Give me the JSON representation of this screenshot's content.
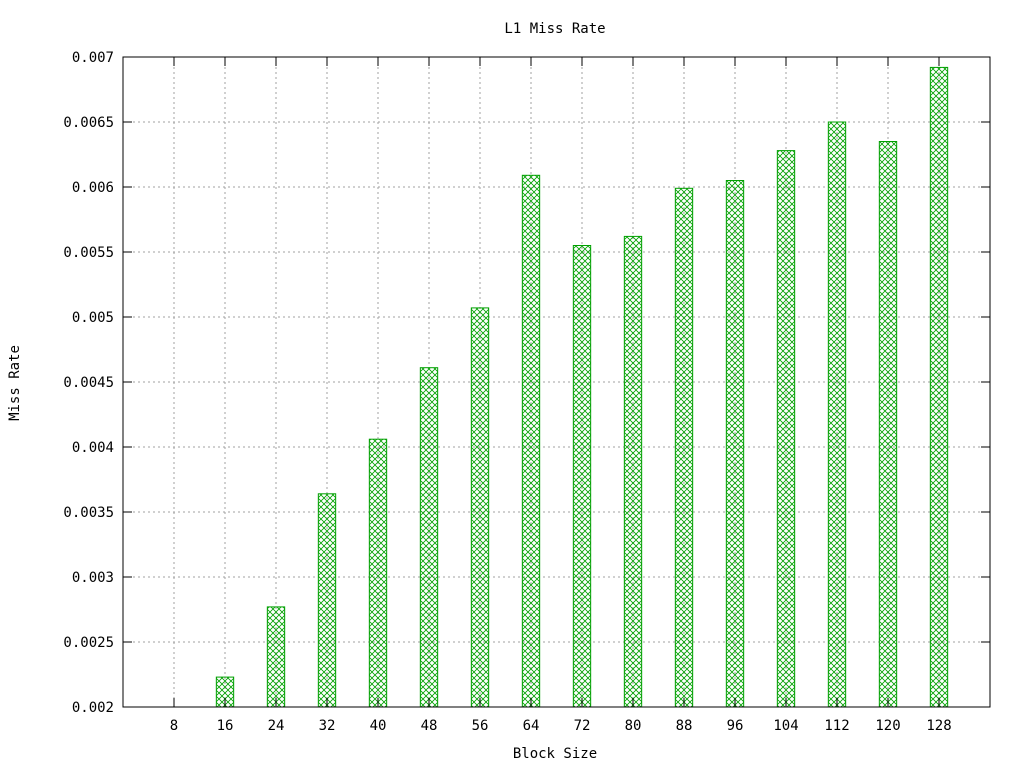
{
  "chart_data": {
    "type": "bar",
    "title": "L1 Miss Rate",
    "xlabel": "Block Size",
    "ylabel": "Miss Rate",
    "categories": [
      "8",
      "16",
      "24",
      "32",
      "40",
      "48",
      "56",
      "64",
      "72",
      "80",
      "88",
      "96",
      "104",
      "112",
      "120",
      "128"
    ],
    "values": [
      0.002,
      0.00223,
      0.00277,
      0.00364,
      0.00406,
      0.00461,
      0.00507,
      0.00609,
      0.00555,
      0.00562,
      0.00599,
      0.00605,
      0.00628,
      0.0065,
      0.00635,
      0.00692
    ],
    "ylim": [
      0.002,
      0.007
    ],
    "yticks": [
      "0.002",
      "0.0025",
      "0.003",
      "0.0035",
      "0.004",
      "0.0045",
      "0.005",
      "0.0055",
      "0.006",
      "0.0065",
      "0.007"
    ],
    "grid": true,
    "legend": "none",
    "bar_color": "#00a000",
    "bar_fill": "crosshatch"
  }
}
